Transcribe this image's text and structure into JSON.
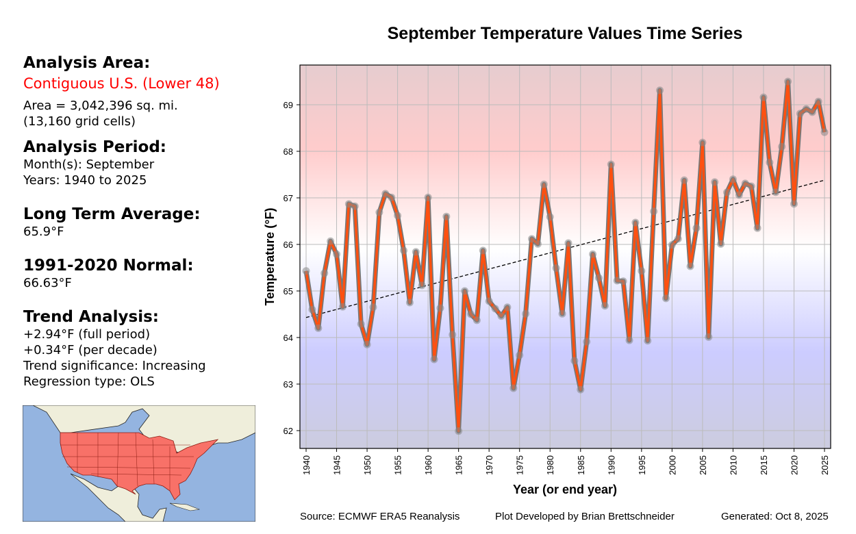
{
  "info": {
    "area_heading": "Analysis Area:",
    "area_name": "Contiguous U.S. (Lower 48)",
    "area_size": "Area = 3,042,396 sq. mi.",
    "grid_cells": "(13,160 grid cells)",
    "period_heading": "Analysis Period:",
    "months": "Month(s): September",
    "years": "Years: 1940 to 2025",
    "lta_heading": "Long Term Average:",
    "lta_value": "65.9°F",
    "normal_heading": "1991-2020 Normal:",
    "normal_value": "66.63°F",
    "trend_heading": "Trend Analysis:",
    "trend_full": "+2.94°F (full period)",
    "trend_decade": "+0.34°F (per decade)",
    "trend_significance": "Trend significance: Increasing",
    "regression_type": "Regression type: OLS"
  },
  "map": {
    "highlight_color": "#f87168",
    "ocean_color": "#94b4e0",
    "land_color": "#efeedb"
  },
  "footer": {
    "source": "Source: ECMWF ERA5 Reanalysis",
    "developer": "Plot Developed by Brian Brettschneider",
    "generated": "Generated: Oct 8, 2025"
  },
  "chart_data": {
    "type": "line",
    "title": "September Temperature Values Time Series",
    "xlabel": "Year (or end year)",
    "ylabel": "Temperature (°F)",
    "xlim": [
      1939,
      2026
    ],
    "ylim": [
      61.6,
      69.85
    ],
    "xticks": [
      1940,
      1945,
      1950,
      1955,
      1960,
      1965,
      1970,
      1975,
      1980,
      1985,
      1990,
      1995,
      2000,
      2005,
      2010,
      2015,
      2020,
      2025
    ],
    "yticks": [
      62,
      63,
      64,
      65,
      66,
      67,
      68,
      69
    ],
    "grid": true,
    "line_color": "#ff5010",
    "trend": {
      "x": [
        1940,
        2025
      ],
      "y": [
        64.43,
        67.38
      ],
      "style": "dashed"
    },
    "x": [
      1940,
      1941,
      1942,
      1943,
      1944,
      1945,
      1946,
      1947,
      1948,
      1949,
      1950,
      1951,
      1952,
      1953,
      1954,
      1955,
      1956,
      1957,
      1958,
      1959,
      1960,
      1961,
      1962,
      1963,
      1964,
      1965,
      1966,
      1967,
      1968,
      1969,
      1970,
      1971,
      1972,
      1973,
      1974,
      1975,
      1976,
      1977,
      1978,
      1979,
      1980,
      1981,
      1982,
      1983,
      1984,
      1985,
      1986,
      1987,
      1988,
      1989,
      1990,
      1991,
      1992,
      1993,
      1994,
      1995,
      1996,
      1997,
      1998,
      1999,
      2000,
      2001,
      2002,
      2003,
      2004,
      2005,
      2006,
      2007,
      2008,
      2009,
      2010,
      2011,
      2012,
      2013,
      2014,
      2015,
      2016,
      2017,
      2018,
      2019,
      2020,
      2021,
      2022,
      2023,
      2024,
      2025
    ],
    "values": [
      65.43,
      64.6,
      64.2,
      65.38,
      66.07,
      65.79,
      64.66,
      66.87,
      66.82,
      64.29,
      63.85,
      64.65,
      66.69,
      67.09,
      67.01,
      66.62,
      65.87,
      64.75,
      65.84,
      65.12,
      67.01,
      63.53,
      64.63,
      66.6,
      64.06,
      61.99,
      65.0,
      64.5,
      64.37,
      65.87,
      64.78,
      64.62,
      64.46,
      64.65,
      62.91,
      63.62,
      64.51,
      66.12,
      66.01,
      67.29,
      66.59,
      65.49,
      64.51,
      66.03,
      63.5,
      62.88,
      63.91,
      65.79,
      65.28,
      64.68,
      67.72,
      65.22,
      65.21,
      63.94,
      66.47,
      65.43,
      63.93,
      66.71,
      69.31,
      64.84,
      65.99,
      66.12,
      67.38,
      65.53,
      66.35,
      68.19,
      64.01,
      67.34,
      66.01,
      67.12,
      67.4,
      67.06,
      67.31,
      67.25,
      66.35,
      69.16,
      67.76,
      67.12,
      68.1,
      69.5,
      66.87,
      68.81,
      68.91,
      68.84,
      69.07,
      68.41
    ]
  }
}
